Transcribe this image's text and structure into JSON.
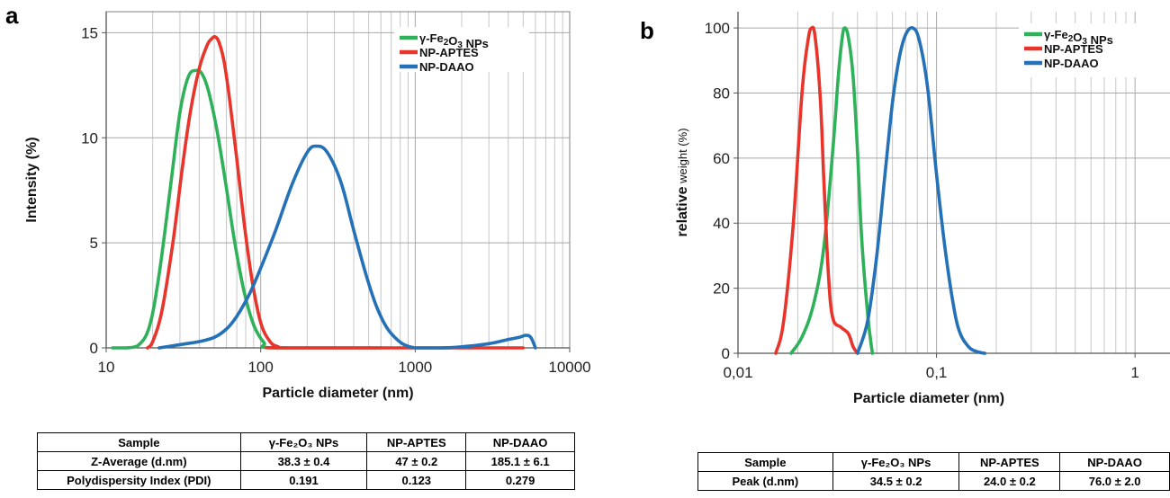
{
  "panels": {
    "a": {
      "letter": "a",
      "chart_data": {
        "type": "line",
        "x_scale": "log",
        "xlim": [
          10,
          10000
        ],
        "ylim": [
          0,
          16
        ],
        "grid": true,
        "legend_position": "top-right",
        "xlabel": "Particle diameter (nm)",
        "ylabel": "Intensity (%)",
        "x_ticks": [
          10,
          100,
          1000,
          10000
        ],
        "x_tick_labels": [
          "10",
          "100",
          "1000",
          "10000"
        ],
        "y_ticks": [
          0,
          5,
          10,
          15
        ],
        "y_tick_labels": [
          "0",
          "5",
          "10",
          "15"
        ],
        "series": [
          {
            "name": "γ-Fe₂O₃ NPs",
            "color": "#2fb15a",
            "x": [
              11,
              13.5,
              16,
              19,
              22,
              26,
              30,
              34,
              38.3,
              42,
              46,
              52,
              60,
              68,
              78,
              90,
              105,
              120,
              600
            ],
            "y": [
              0,
              0,
              0.1,
              1.0,
              3.5,
              7.6,
              11.2,
              12.9,
              13.2,
              13.0,
              12.2,
              10.4,
              7.6,
              5.0,
              2.7,
              1.1,
              0.25,
              0,
              0
            ]
          },
          {
            "name": "NP-APTES",
            "color": "#e8352c",
            "x": [
              18.5,
              20,
              23,
              27,
              31,
              35,
              40,
              45,
              48,
              51,
              54,
              58,
              63,
              70,
              78,
              88,
              100,
              115,
              130,
              150,
              5000
            ],
            "y": [
              0,
              0.3,
              1.8,
              5.0,
              8.5,
              11.2,
              13.3,
              14.4,
              14.7,
              14.8,
              14.5,
              13.6,
              11.8,
              9.0,
              6.0,
              3.2,
              1.2,
              0.3,
              0.05,
              0,
              0
            ]
          },
          {
            "name": "NP-DAAO",
            "color": "#2471b8",
            "x": [
              22,
              27,
              33,
              40,
              50,
              60,
              70,
              85,
              100,
              125,
              160,
              200,
              230,
              270,
              330,
              400,
              480,
              560,
              650,
              750,
              850,
              1000,
              1200,
              1500,
              2000,
              3000,
              4000,
              4700,
              5200,
              5600,
              6000
            ],
            "y": [
              0,
              0.1,
              0.2,
              0.3,
              0.5,
              0.9,
              1.5,
              2.6,
              3.8,
              5.6,
              7.8,
              9.3,
              9.6,
              9.3,
              7.9,
              5.6,
              3.5,
              2.0,
              1.0,
              0.45,
              0.15,
              0,
              0,
              0,
              0.05,
              0.2,
              0.4,
              0.5,
              0.6,
              0.5,
              0
            ]
          }
        ]
      }
    },
    "b": {
      "letter": "b",
      "chart_data": {
        "type": "line",
        "x_scale": "log",
        "xlim": [
          0.01,
          1.5
        ],
        "ylim": [
          0,
          105
        ],
        "grid": true,
        "legend_position": "top-right",
        "xlabel": "Particle diameter (nm)",
        "ylabel_main": "relative",
        "ylabel_sub": " weight (%)",
        "x_ticks": [
          0.01,
          0.1,
          1
        ],
        "x_tick_labels": [
          "0,01",
          "0,1",
          "1"
        ],
        "y_ticks": [
          0,
          20,
          40,
          60,
          80,
          100
        ],
        "y_tick_labels": [
          "0",
          "20",
          "40",
          "60",
          "80",
          "100"
        ],
        "series": [
          {
            "name": "γ-Fe₂O₃ NPs",
            "color": "#2fb15a",
            "x": [
              0.0185,
              0.021,
              0.024,
              0.027,
              0.03,
              0.032,
              0.0335,
              0.0345,
              0.036,
              0.038,
              0.04,
              0.042,
              0.045,
              0.0475
            ],
            "y": [
              0,
              5,
              15,
              32,
              62,
              85,
              97,
              100,
              97,
              85,
              62,
              35,
              12,
              0
            ]
          },
          {
            "name": "NP-APTES",
            "color": "#e8352c",
            "x": [
              0.0155,
              0.017,
              0.019,
              0.021,
              0.0225,
              0.0235,
              0.0245,
              0.026,
              0.027,
              0.0285,
              0.03,
              0.033,
              0.036,
              0.038,
              0.04
            ],
            "y": [
              0,
              10,
              40,
              80,
              96,
              100,
              97,
              78,
              55,
              25,
              11,
              8,
              6,
              2,
              0
            ]
          },
          {
            "name": "NP-DAAO",
            "color": "#2471b8",
            "x": [
              0.04,
              0.045,
              0.05,
              0.055,
              0.06,
              0.065,
              0.07,
              0.076,
              0.082,
              0.09,
              0.1,
              0.11,
              0.12,
              0.13,
              0.145,
              0.16,
              0.175
            ],
            "y": [
              0,
              10,
              30,
              55,
              77,
              91,
              98,
              100,
              96,
              82,
              55,
              33,
              17,
              7,
              2,
              0.5,
              0
            ]
          }
        ]
      }
    }
  },
  "table_a": {
    "headers": [
      "Sample",
      "γ-Fe₂O₃ NPs",
      "NP-APTES",
      "NP-DAAO"
    ],
    "rows": [
      [
        "Z-Average (d.nm)",
        "38.3 ± 0.4",
        "47 ± 0.2",
        "185.1 ± 6.1"
      ],
      [
        "Polydispersity Index (PDI)",
        "0.191",
        "0.123",
        "0.279"
      ]
    ]
  },
  "table_b": {
    "headers": [
      "Sample",
      "γ-Fe₂O₃ NPs",
      "NP-APTES",
      "NP-DAAO"
    ],
    "rows": [
      [
        "Peak (d.nm)",
        "34.5 ± 0.2",
        "24.0 ± 0.2",
        "76.0 ± 2.0"
      ]
    ]
  }
}
